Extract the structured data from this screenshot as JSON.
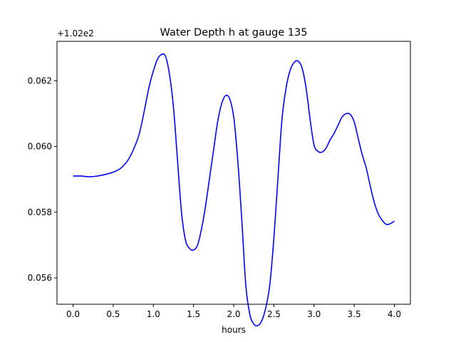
{
  "chart_data": {
    "type": "line",
    "title": "Water Depth h at gauge 135",
    "xlabel": "hours",
    "ylabel": "",
    "offset_label": "+1.02e2",
    "xlim": [
      -0.2,
      4.2
    ],
    "ylim": [
      0.0552,
      0.0632
    ],
    "xticks": [
      0.0,
      0.5,
      1.0,
      1.5,
      2.0,
      2.5,
      3.0,
      3.5,
      4.0
    ],
    "xtick_labels": [
      "0.0",
      "0.5",
      "1.0",
      "1.5",
      "2.0",
      "2.5",
      "3.0",
      "3.5",
      "4.0"
    ],
    "yticks": [
      0.056,
      0.058,
      0.06,
      0.062
    ],
    "ytick_labels": [
      "0.056",
      "0.058",
      "0.060",
      "0.062"
    ],
    "grid": false,
    "series": [
      {
        "color": "#0000ff",
        "x": [
          0.0,
          0.1,
          0.2,
          0.3,
          0.4,
          0.5,
          0.6,
          0.7,
          0.8,
          0.85,
          0.9,
          0.95,
          1.0,
          1.05,
          1.1,
          1.15,
          1.2,
          1.25,
          1.3,
          1.35,
          1.4,
          1.45,
          1.5,
          1.55,
          1.6,
          1.65,
          1.7,
          1.75,
          1.8,
          1.85,
          1.9,
          1.95,
          2.0,
          2.05,
          2.1,
          2.15,
          2.2,
          2.25,
          2.3,
          2.35,
          2.4,
          2.45,
          2.5,
          2.55,
          2.6,
          2.65,
          2.7,
          2.75,
          2.8,
          2.85,
          2.9,
          2.95,
          3.0,
          3.05,
          3.1,
          3.15,
          3.2,
          3.25,
          3.3,
          3.35,
          3.4,
          3.45,
          3.5,
          3.55,
          3.6,
          3.65,
          3.7,
          3.75,
          3.8,
          3.85,
          3.9,
          3.95,
          4.0
        ],
        "y": [
          0.0591,
          0.0591,
          0.05908,
          0.0591,
          0.05915,
          0.05922,
          0.05935,
          0.05965,
          0.0602,
          0.06065,
          0.06125,
          0.06185,
          0.0623,
          0.06265,
          0.0628,
          0.06275,
          0.0622,
          0.0612,
          0.0596,
          0.058,
          0.05715,
          0.0569,
          0.05685,
          0.057,
          0.0575,
          0.0582,
          0.05905,
          0.0599,
          0.06075,
          0.0613,
          0.06155,
          0.06145,
          0.0609,
          0.0596,
          0.0578,
          0.0558,
          0.0549,
          0.0546,
          0.05455,
          0.0547,
          0.0551,
          0.0558,
          0.0572,
          0.059,
          0.0608,
          0.06175,
          0.0623,
          0.06255,
          0.0626,
          0.0624,
          0.0618,
          0.06085,
          0.06005,
          0.05985,
          0.05983,
          0.05995,
          0.0602,
          0.0604,
          0.06065,
          0.0609,
          0.061,
          0.06098,
          0.06075,
          0.06025,
          0.05975,
          0.05935,
          0.0588,
          0.0583,
          0.05795,
          0.05775,
          0.05763,
          0.05765,
          0.05773
        ]
      }
    ]
  }
}
